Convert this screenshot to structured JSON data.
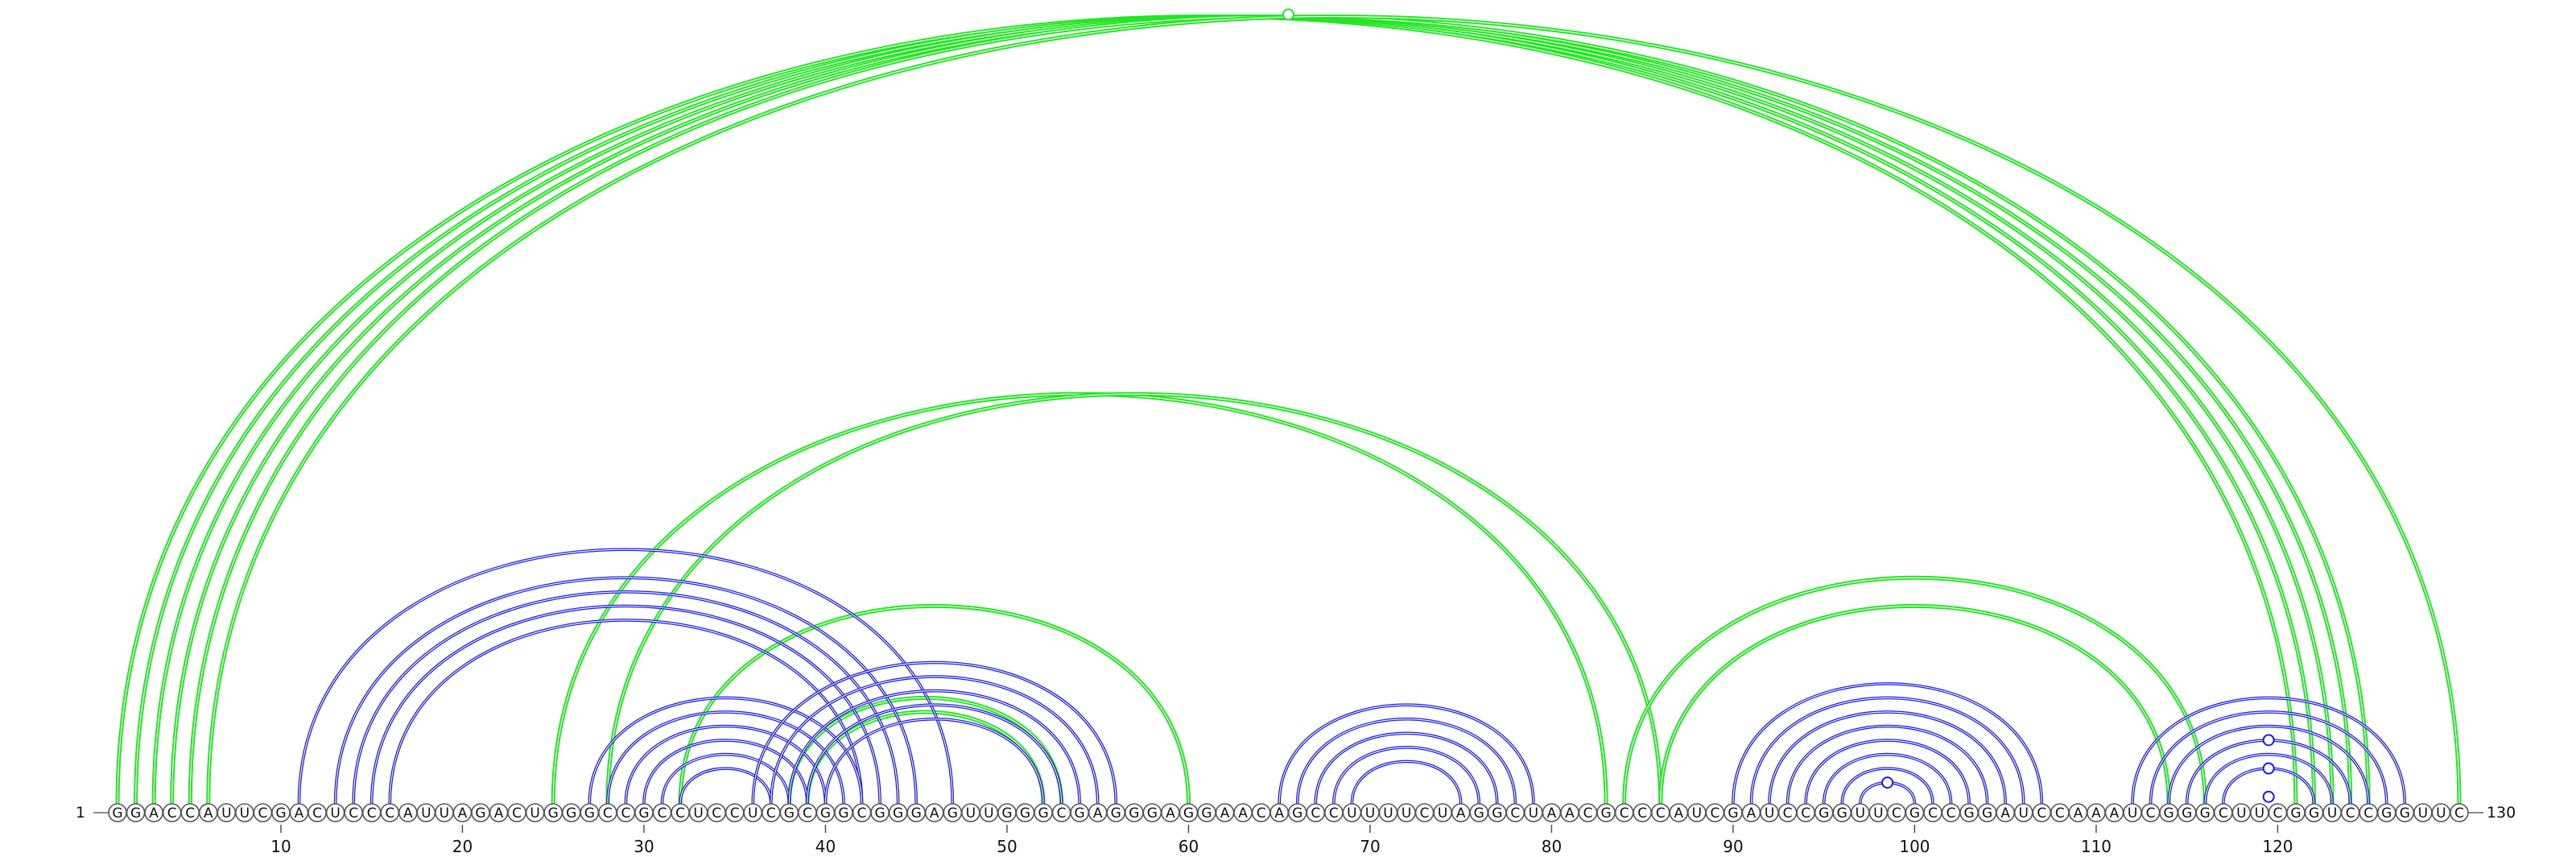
{
  "sequence": "GGACCAUUCGACUCCCAUUAGACUGGGCCGCCUCCUCGCGGCGGGAGUUGGGCGAGGGAGGAACAGCCUUUUCUAGGCUAACGCCCAUCGAUCCGGUUCGCCGGAUCCAAAUCGGGCUUCGGUCCGGUUC",
  "start_label": "1",
  "end_label": "130",
  "ticks": [
    10,
    20,
    30,
    40,
    50,
    60,
    70,
    80,
    90,
    100,
    110,
    120
  ],
  "colors": {
    "blue": "#1a1ae6",
    "green": "#22e622",
    "circle_stroke": "#555555"
  },
  "arc_groups": [
    {
      "color": "green",
      "pairs": [
        [
          1,
          121
        ],
        [
          2,
          122
        ],
        [
          3,
          123
        ],
        [
          4,
          124
        ],
        [
          5,
          125
        ],
        [
          6,
          130
        ]
      ]
    },
    {
      "color": "green",
      "pairs": [
        [
          25,
          83
        ],
        [
          28,
          86
        ]
      ]
    },
    {
      "color": "green",
      "pairs": [
        [
          32,
          60
        ],
        [
          38,
          53
        ],
        [
          39,
          52
        ]
      ]
    },
    {
      "color": "green",
      "pairs": [
        [
          84,
          116
        ],
        [
          86,
          114
        ]
      ]
    },
    {
      "color": "blue",
      "pairs": [
        [
          11,
          47
        ],
        [
          13,
          45
        ],
        [
          14,
          44
        ],
        [
          15,
          43
        ],
        [
          16,
          42
        ]
      ]
    },
    {
      "color": "blue",
      "pairs": [
        [
          27,
          42
        ],
        [
          28,
          41
        ],
        [
          29,
          40
        ],
        [
          30,
          39
        ],
        [
          31,
          38
        ],
        [
          32,
          37
        ]
      ]
    },
    {
      "color": "blue",
      "pairs": [
        [
          36,
          56
        ],
        [
          37,
          55
        ],
        [
          38,
          54
        ],
        [
          39,
          53
        ],
        [
          40,
          52
        ]
      ]
    },
    {
      "color": "blue",
      "pairs": [
        [
          65,
          79
        ],
        [
          66,
          78
        ],
        [
          67,
          77
        ],
        [
          68,
          76
        ],
        [
          69,
          75
        ]
      ]
    },
    {
      "color": "blue",
      "pairs": [
        [
          90,
          107
        ],
        [
          91,
          106
        ],
        [
          92,
          105
        ],
        [
          93,
          104
        ],
        [
          94,
          103
        ],
        [
          95,
          102
        ],
        [
          96,
          101
        ],
        [
          97,
          100
        ]
      ]
    },
    {
      "color": "blue",
      "pairs": [
        [
          112,
          127
        ],
        [
          113,
          126
        ],
        [
          114,
          125
        ],
        [
          115,
          124
        ],
        [
          116,
          123
        ],
        [
          117,
          122
        ]
      ]
    }
  ],
  "markers": [
    {
      "color": "green",
      "pair": [
        2,
        129
      ]
    },
    {
      "color": "blue",
      "pair": [
        97,
        100
      ]
    },
    {
      "color": "blue",
      "pair": [
        115,
        124
      ]
    },
    {
      "color": "blue",
      "pair": [
        117,
        122
      ]
    },
    {
      "color": "blue",
      "pair": [
        119,
        120
      ]
    }
  ]
}
